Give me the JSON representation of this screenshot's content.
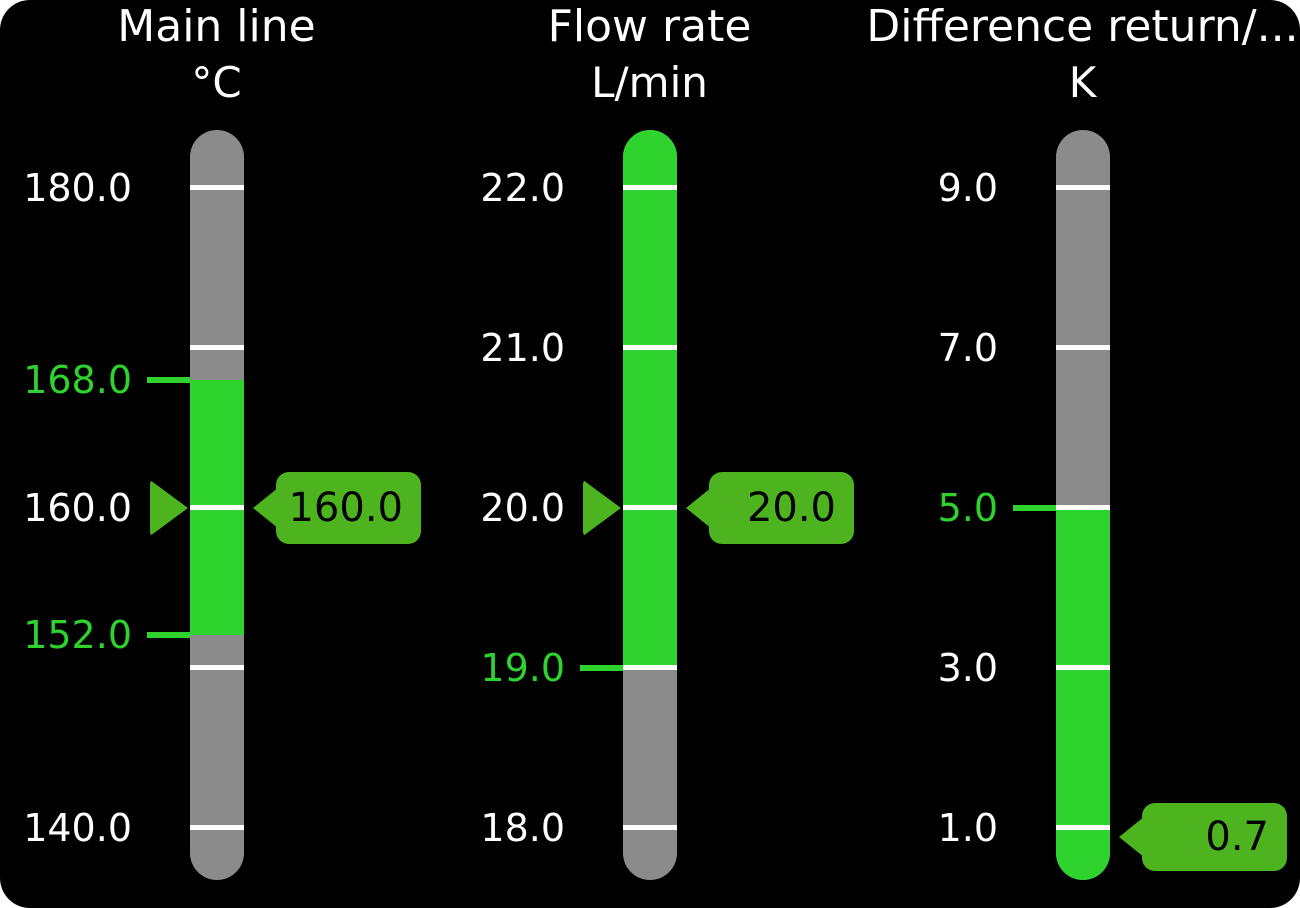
{
  "colors": {
    "panel-bg": "#000000",
    "bar-track": "#8b8b8b",
    "bar-green": "#2ed32e",
    "ind-green": "#4db41f",
    "tick-white": "#ffffff",
    "label-white": "#ffffff",
    "badge-text": "#000000"
  },
  "gauges": [
    {
      "title": "Main line",
      "unit": "°C",
      "value": "160.0",
      "scale_min": 140.0,
      "scale_max": 180.0,
      "tick_interval": 10.0,
      "limit_high": "168.0",
      "limit_low": "152.0",
      "labels": [
        "180.0",
        "168.0",
        "160.0",
        "152.0",
        "140.0"
      ]
    },
    {
      "title": "Flow rate",
      "unit": "L/min",
      "value": "20.0",
      "scale_min": 18.0,
      "scale_max": 22.0,
      "tick_interval": 1.0,
      "limit_low": "19.0",
      "labels": [
        "22.0",
        "21.0",
        "20.0",
        "19.0",
        "18.0"
      ]
    },
    {
      "title": "Difference return/...",
      "unit": "K",
      "value": "0.7",
      "scale_min": 1.0,
      "scale_max": 9.0,
      "tick_interval": 2.0,
      "limit_high": "5.0",
      "labels": [
        "9.0",
        "7.0",
        "5.0",
        "3.0",
        "1.0"
      ]
    }
  ]
}
